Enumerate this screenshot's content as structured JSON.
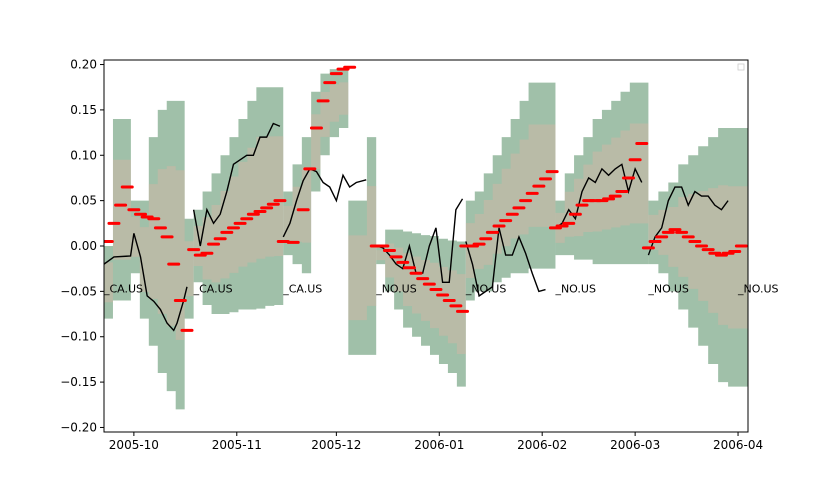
{
  "chart_data": {
    "type": "line",
    "title": "",
    "xlabel": "",
    "ylabel": "",
    "ylim": [
      -0.205,
      0.205
    ],
    "xlim": [
      "2005-09-22",
      "2006-04-04"
    ],
    "y_ticks": [
      -0.2,
      -0.15,
      -0.1,
      -0.05,
      0.0,
      0.05,
      0.1,
      0.15,
      0.2
    ],
    "y_tick_labels": [
      "−0.20",
      "−0.15",
      "−0.10",
      "−0.05",
      "0.00",
      "0.05",
      "0.10",
      "0.15",
      "0.20"
    ],
    "x_ticks": [
      "2005-10-01",
      "2005-11-01",
      "2005-12-01",
      "2006-01-01",
      "2006-02-01",
      "2006-03-01",
      "2006-04-01"
    ],
    "x_tick_labels": [
      "2005-10",
      "2005-11",
      "2005-12",
      "2006-01",
      "2006-02",
      "2006-03",
      "2006-04"
    ],
    "grid": false,
    "colors": {
      "band_outer": "#8fb59a",
      "band_inner": "#e8b3a3",
      "realized_line": "#000000",
      "forecast_markers": "#ff0000"
    },
    "segment_labels": [
      {
        "date": "2005-09-22",
        "y": -0.047,
        "text": "_CA.US"
      },
      {
        "date": "2005-10-19",
        "y": -0.047,
        "text": "_CA.US"
      },
      {
        "date": "2005-11-15",
        "y": -0.047,
        "text": "_CA.US"
      },
      {
        "date": "2005-12-13",
        "y": -0.047,
        "text": "_NO.US"
      },
      {
        "date": "2006-01-09",
        "y": -0.047,
        "text": "_NO.US"
      },
      {
        "date": "2006-02-05",
        "y": -0.047,
        "text": "_NO.US"
      },
      {
        "date": "2006-03-05",
        "y": -0.047,
        "text": "_NO.US"
      },
      {
        "date": "2006-04-01",
        "y": -0.047,
        "text": "_NO.US"
      }
    ],
    "segments": [
      {
        "start": "2005-09-22",
        "end": "2005-10-19",
        "band_upper": [
          0.0,
          0.14,
          0.14,
          0.05,
          0.05,
          0.12,
          0.15,
          0.16,
          0.16,
          0.03
        ],
        "band_lower": [
          -0.08,
          -0.06,
          -0.06,
          -0.03,
          -0.08,
          -0.11,
          -0.14,
          -0.16,
          -0.18,
          -0.08
        ],
        "realized": {
          "x": [
            "2005-09-22",
            "2005-09-25",
            "2005-09-30",
            "2005-10-01",
            "2005-10-03",
            "2005-10-05",
            "2005-10-07",
            "2005-10-09",
            "2005-10-11",
            "2005-10-13",
            "2005-10-14",
            "2005-10-16",
            "2005-10-17"
          ],
          "y": [
            -0.02,
            -0.012,
            -0.011,
            0.014,
            -0.012,
            -0.055,
            -0.061,
            -0.07,
            -0.085,
            -0.093,
            -0.085,
            -0.06,
            -0.045
          ]
        },
        "forecast": {
          "x": [
            "2005-09-23",
            "2005-09-25",
            "2005-09-27",
            "2005-09-29",
            "2005-10-01",
            "2005-10-03",
            "2005-10-05",
            "2005-10-07",
            "2005-10-09",
            "2005-10-11",
            "2005-10-13",
            "2005-10-15",
            "2005-10-17"
          ],
          "y": [
            0.005,
            0.025,
            0.045,
            0.065,
            0.04,
            0.035,
            0.032,
            0.03,
            0.02,
            0.01,
            -0.02,
            -0.06,
            -0.093
          ]
        }
      },
      {
        "start": "2005-10-19",
        "end": "2005-11-15",
        "band_upper": [
          0.04,
          0.06,
          0.08,
          0.1,
          0.12,
          0.14,
          0.16,
          0.175,
          0.175,
          0.175
        ],
        "band_lower": [
          -0.04,
          -0.065,
          -0.075,
          -0.075,
          -0.073,
          -0.07,
          -0.07,
          -0.069,
          -0.066,
          -0.065
        ],
        "realized": {
          "x": [
            "2005-10-19",
            "2005-10-21",
            "2005-10-23",
            "2005-10-25",
            "2005-10-27",
            "2005-10-29",
            "2005-10-31",
            "2005-11-02",
            "2005-11-04",
            "2005-11-06",
            "2005-11-08",
            "2005-11-10",
            "2005-11-12",
            "2005-11-14"
          ],
          "y": [
            0.04,
            0.0,
            0.04,
            0.025,
            0.035,
            0.06,
            0.09,
            0.095,
            0.1,
            0.1,
            0.12,
            0.12,
            0.135,
            0.132
          ]
        },
        "forecast": {
          "x": [
            "2005-10-19",
            "2005-10-21",
            "2005-10-23",
            "2005-10-25",
            "2005-10-27",
            "2005-10-29",
            "2005-10-31",
            "2005-11-02",
            "2005-11-04",
            "2005-11-06",
            "2005-11-08",
            "2005-11-10",
            "2005-11-12",
            "2005-11-14"
          ],
          "y": [
            -0.004,
            -0.01,
            -0.008,
            0.002,
            0.008,
            0.015,
            0.02,
            0.025,
            0.03,
            0.035,
            0.038,
            0.042,
            0.046,
            0.05
          ]
        }
      },
      {
        "start": "2005-11-15",
        "end": "2005-12-13",
        "band_upper": [
          0.06,
          0.09,
          0.12,
          0.17,
          0.19,
          0.195,
          0.195,
          0.05,
          0.05,
          0.12
        ],
        "band_lower": [
          -0.01,
          -0.02,
          -0.03,
          0.06,
          0.1,
          0.12,
          0.13,
          -0.12,
          -0.12,
          -0.12
        ],
        "realized": {
          "x": [
            "2005-11-15",
            "2005-11-17",
            "2005-11-19",
            "2005-11-21",
            "2005-11-23",
            "2005-11-25",
            "2005-11-27",
            "2005-11-29",
            "2005-12-01",
            "2005-12-03",
            "2005-12-05",
            "2005-12-07",
            "2005-12-10"
          ],
          "y": [
            0.01,
            0.025,
            0.05,
            0.072,
            0.085,
            0.082,
            0.07,
            0.065,
            0.05,
            0.078,
            0.065,
            0.07,
            0.073
          ]
        },
        "forecast": {
          "x": [
            "2005-11-15",
            "2005-11-18",
            "2005-11-21",
            "2005-11-23",
            "2005-11-25",
            "2005-11-27",
            "2005-11-29",
            "2005-12-01",
            "2005-12-03",
            "2005-12-05"
          ],
          "y": [
            0.005,
            0.004,
            0.04,
            0.085,
            0.13,
            0.16,
            0.18,
            0.19,
            0.195,
            0.197
          ]
        }
      },
      {
        "start": "2005-12-13",
        "end": "2006-01-09",
        "band_upper": [
          0.0,
          0.018,
          0.018,
          0.016,
          0.014,
          0.012,
          0.011,
          0.008,
          0.006,
          0.005
        ],
        "band_lower": [
          -0.02,
          -0.05,
          -0.07,
          -0.09,
          -0.1,
          -0.11,
          -0.12,
          -0.13,
          -0.14,
          -0.155
        ],
        "realized": {
          "x": [
            "2005-12-13",
            "2005-12-15",
            "2005-12-17",
            "2005-12-19",
            "2005-12-21",
            "2005-12-23",
            "2005-12-25",
            "2005-12-27",
            "2005-12-29",
            "2005-12-31",
            "2006-01-02",
            "2006-01-04",
            "2006-01-06",
            "2006-01-08"
          ],
          "y": [
            0.0,
            -0.002,
            -0.01,
            -0.02,
            -0.025,
            0.0,
            -0.03,
            -0.03,
            0.0,
            0.02,
            -0.04,
            -0.04,
            0.04,
            0.052
          ]
        },
        "forecast": {
          "x": [
            "2005-12-13",
            "2005-12-15",
            "2005-12-17",
            "2005-12-19",
            "2005-12-21",
            "2005-12-23",
            "2005-12-25",
            "2005-12-27",
            "2005-12-29",
            "2005-12-31",
            "2006-01-02",
            "2006-01-04",
            "2006-01-06",
            "2006-01-08"
          ],
          "y": [
            0.0,
            0.0,
            -0.005,
            -0.012,
            -0.018,
            -0.024,
            -0.03,
            -0.036,
            -0.042,
            -0.048,
            -0.054,
            -0.06,
            -0.066,
            -0.072
          ]
        }
      },
      {
        "start": "2006-01-09",
        "end": "2006-02-05",
        "band_upper": [
          0.05,
          0.06,
          0.08,
          0.1,
          0.12,
          0.14,
          0.16,
          0.18,
          0.18,
          0.18
        ],
        "band_lower": [
          -0.06,
          -0.05,
          -0.05,
          -0.04,
          -0.035,
          -0.03,
          -0.03,
          -0.025,
          -0.025,
          -0.025
        ],
        "realized": {
          "x": [
            "2006-01-09",
            "2006-01-11",
            "2006-01-13",
            "2006-01-15",
            "2006-01-17",
            "2006-01-19",
            "2006-01-21",
            "2006-01-23",
            "2006-01-25",
            "2006-01-27",
            "2006-01-29",
            "2006-01-31",
            "2006-02-02"
          ],
          "y": [
            0.005,
            -0.02,
            -0.055,
            -0.05,
            -0.045,
            0.02,
            -0.01,
            -0.01,
            0.01,
            -0.008,
            -0.03,
            -0.05,
            -0.048
          ]
        },
        "forecast": {
          "x": [
            "2006-01-09",
            "2006-01-11",
            "2006-01-13",
            "2006-01-15",
            "2006-01-17",
            "2006-01-19",
            "2006-01-21",
            "2006-01-23",
            "2006-01-25",
            "2006-01-27",
            "2006-01-29",
            "2006-01-31",
            "2006-02-02",
            "2006-02-04"
          ],
          "y": [
            0.0,
            0.0,
            0.002,
            0.008,
            0.015,
            0.022,
            0.028,
            0.035,
            0.042,
            0.05,
            0.058,
            0.066,
            0.074,
            0.082
          ]
        }
      },
      {
        "start": "2006-02-05",
        "end": "2006-03-05",
        "band_upper": [
          0.05,
          0.08,
          0.1,
          0.12,
          0.14,
          0.15,
          0.16,
          0.17,
          0.18,
          0.18
        ],
        "band_lower": [
          -0.01,
          -0.01,
          -0.015,
          -0.015,
          -0.02,
          -0.02,
          -0.02,
          -0.02,
          -0.02,
          -0.02
        ],
        "realized": {
          "x": [
            "2006-02-05",
            "2006-02-07",
            "2006-02-09",
            "2006-02-11",
            "2006-02-13",
            "2006-02-15",
            "2006-02-17",
            "2006-02-19",
            "2006-02-21",
            "2006-02-23",
            "2006-02-25",
            "2006-02-27",
            "2006-03-01",
            "2006-03-03"
          ],
          "y": [
            0.02,
            0.025,
            0.04,
            0.03,
            0.06,
            0.075,
            0.07,
            0.085,
            0.078,
            0.085,
            0.09,
            0.06,
            0.085,
            0.07
          ]
        },
        "forecast": {
          "x": [
            "2006-02-05",
            "2006-02-07",
            "2006-02-09",
            "2006-02-11",
            "2006-02-13",
            "2006-02-15",
            "2006-02-17",
            "2006-02-19",
            "2006-02-21",
            "2006-02-23",
            "2006-02-25",
            "2006-02-27",
            "2006-03-01",
            "2006-03-03"
          ],
          "y": [
            0.02,
            0.022,
            0.025,
            0.035,
            0.045,
            0.05,
            0.05,
            0.05,
            0.052,
            0.055,
            0.06,
            0.075,
            0.095,
            0.113
          ]
        }
      },
      {
        "start": "2006-03-05",
        "end": "2006-04-04",
        "band_upper": [
          0.05,
          0.06,
          0.07,
          0.09,
          0.1,
          0.11,
          0.12,
          0.13,
          0.13,
          0.13
        ],
        "band_lower": [
          -0.02,
          -0.03,
          -0.05,
          -0.07,
          -0.09,
          -0.11,
          -0.13,
          -0.15,
          -0.155,
          -0.155
        ],
        "realized": {
          "x": [
            "2006-03-05",
            "2006-03-07",
            "2006-03-09",
            "2006-03-11",
            "2006-03-13",
            "2006-03-15",
            "2006-03-17",
            "2006-03-19",
            "2006-03-21",
            "2006-03-23",
            "2006-03-25",
            "2006-03-27",
            "2006-03-29"
          ],
          "y": [
            -0.01,
            0.01,
            0.02,
            0.05,
            0.065,
            0.065,
            0.045,
            0.06,
            0.055,
            0.055,
            0.045,
            0.04,
            0.05
          ]
        },
        "forecast": {
          "x": [
            "2006-03-05",
            "2006-03-07",
            "2006-03-09",
            "2006-03-11",
            "2006-03-13",
            "2006-03-15",
            "2006-03-17",
            "2006-03-19",
            "2006-03-21",
            "2006-03-23",
            "2006-03-25",
            "2006-03-27",
            "2006-03-29",
            "2006-03-31",
            "2006-04-02"
          ],
          "y": [
            -0.002,
            0.005,
            0.01,
            0.015,
            0.018,
            0.015,
            0.01,
            0.005,
            0.0,
            -0.004,
            -0.008,
            -0.01,
            -0.008,
            -0.006,
            0.0
          ]
        }
      }
    ]
  }
}
